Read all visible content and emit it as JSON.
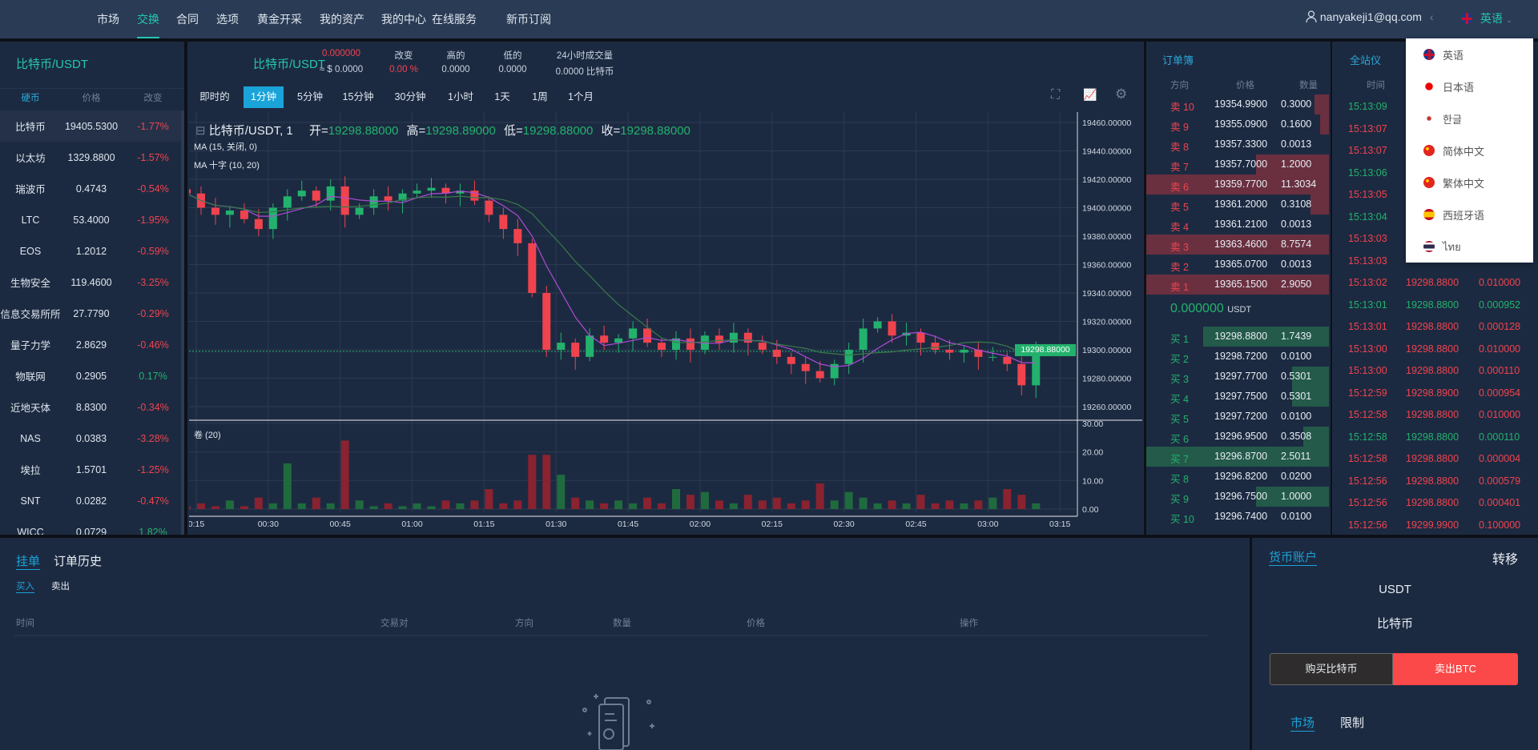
{
  "nav": {
    "items": [
      "市场",
      "交换",
      "合同",
      "选项",
      "黄金开采",
      "我的资产",
      "我的中心",
      "在线服务",
      "新币订阅"
    ],
    "active": 1,
    "user": "nanyakeji1@qq.com",
    "language": "英语"
  },
  "language_menu": [
    {
      "label": "英语",
      "flag": "uk"
    },
    {
      "label": "日本语",
      "flag": "jp"
    },
    {
      "label": "한글",
      "flag": "kr"
    },
    {
      "label": "简体中文",
      "flag": "cn"
    },
    {
      "label": "繁体中文",
      "flag": "cn"
    },
    {
      "label": "西班牙语",
      "flag": "es"
    },
    {
      "label": "ไทย",
      "flag": "th"
    }
  ],
  "market": {
    "title": "比特币/USDT",
    "headers": [
      "硬币",
      "价格",
      "改变"
    ],
    "rows": [
      [
        "比特币",
        "19405.5300",
        "-1.77%"
      ],
      [
        "以太坊",
        "1329.8800",
        "-1.57%"
      ],
      [
        "瑞波币",
        "0.4743",
        "-0.54%"
      ],
      [
        "LTC",
        "53.4000",
        "-1.95%"
      ],
      [
        "EOS",
        "1.2012",
        "-0.59%"
      ],
      [
        "生物安全",
        "119.4600",
        "-3.25%"
      ],
      [
        "信息交易所所",
        "27.7790",
        "-0.29%"
      ],
      [
        "量子力学",
        "2.8629",
        "-0.46%"
      ],
      [
        "物联网",
        "0.2905",
        "0.17%"
      ],
      [
        "近地天体",
        "8.8300",
        "-0.34%"
      ],
      [
        "NAS",
        "0.0383",
        "-3.28%"
      ],
      [
        "埃拉",
        "1.5701",
        "-1.25%"
      ],
      [
        "SNT",
        "0.0282",
        "-0.47%"
      ],
      [
        "WICC",
        "0.0729",
        "1.82%"
      ]
    ]
  },
  "ticker": {
    "pair": "比特币/USDT",
    "price": "0.000000",
    "usd": "≈ $ 0.0000",
    "change_label": "改变",
    "change": "0.00 %",
    "high_label": "高的",
    "high": "0.0000",
    "low_label": "低的",
    "low": "0.0000",
    "vol_label": "24小时成交量",
    "vol": "0.0000 比特币"
  },
  "timeframes": [
    "即时的",
    "1分钟",
    "5分钟",
    "15分钟",
    "30分钟",
    "1小时",
    "1天",
    "1周",
    "1个月"
  ],
  "active_timeframe": 1,
  "chart_legend": {
    "symbol": "比特币/USDT, 1",
    "open_label": "开=",
    "open": "19298.88000",
    "high_label": "高=",
    "high": "19298.89000",
    "low_label": "低=",
    "low": "19298.88000",
    "close_label": "收=",
    "close": "19298.88000",
    "ma1": "MA (15, 关闭, 0)",
    "ma2": "MA 十字 (10, 20)",
    "volume": "卷 (20)",
    "last_price": "19298.88000"
  },
  "chart_data": {
    "type": "candlestick",
    "interval_minutes": 3,
    "start": "00:13",
    "price_ticks": [
      "19460.00000",
      "19440.00000",
      "19420.00000",
      "19400.00000",
      "19380.00000",
      "19360.00000",
      "19340.00000",
      "19320.00000",
      "19300.00000",
      "19280.00000",
      "19260.00000"
    ],
    "volume_ticks": [
      "30.00",
      "20.00",
      "10.00",
      "0.00"
    ],
    "time_ticks": [
      "0:15",
      "00:30",
      "00:45",
      "01:00",
      "01:15",
      "01:30",
      "01:45",
      "02:00",
      "02:15",
      "02:30",
      "02:45",
      "03:00",
      "03:15"
    ],
    "closes": [
      19410,
      19400,
      19395,
      19398,
      19392,
      19385,
      19400,
      19408,
      19412,
      19405,
      19415,
      19395,
      19400,
      19408,
      19405,
      19410,
      19412,
      19414,
      19410,
      19412,
      19405,
      19395,
      19385,
      19375,
      19340,
      19300,
      19305,
      19295,
      19310,
      19305,
      19308,
      19315,
      19305,
      19300,
      19308,
      19300,
      19310,
      19305,
      19312,
      19305,
      19300,
      19295,
      19290,
      19285,
      19280,
      19290,
      19300,
      19315,
      19320,
      19310,
      19312,
      19305,
      19300,
      19298,
      19300,
      19295,
      19295,
      19290,
      19275,
      19298.88
    ],
    "volumes": [
      1,
      2,
      1,
      3,
      1,
      4,
      2,
      16,
      2,
      4,
      2,
      24,
      3,
      1,
      2,
      1,
      2,
      1,
      3,
      2,
      3,
      7,
      2,
      3,
      19,
      19,
      12,
      4,
      3,
      2,
      3,
      2,
      4,
      2,
      7,
      5,
      6,
      3,
      2,
      5,
      3,
      4,
      2,
      3,
      9,
      3,
      6,
      4,
      2,
      3,
      2,
      5,
      2,
      3,
      2,
      3,
      4,
      7,
      5,
      2
    ]
  },
  "orderbook": {
    "title": "订单簿",
    "headers": [
      "方向",
      "价格",
      "数量"
    ],
    "asks": [
      [
        "卖 10",
        "19354.9900",
        "0.3000",
        0.08
      ],
      [
        "卖 9",
        "19355.0900",
        "0.1600",
        0.05
      ],
      [
        "卖 8",
        "19357.3300",
        "0.0013",
        0
      ],
      [
        "卖 7",
        "19357.7000",
        "1.2000",
        0.4
      ],
      [
        "卖 6",
        "19359.7700",
        "11.3034",
        1
      ],
      [
        "卖 5",
        "19361.2000",
        "0.3108",
        0.1
      ],
      [
        "卖 4",
        "19361.2100",
        "0.0013",
        0
      ],
      [
        "卖 3",
        "19363.4600",
        "8.7574",
        1
      ],
      [
        "卖 2",
        "19365.0700",
        "0.0013",
        0
      ],
      [
        "卖 1",
        "19365.1500",
        "2.9050",
        1
      ]
    ],
    "mid": "0.000000",
    "mid_unit": "USDT",
    "bids": [
      [
        "买 1",
        "19298.8800",
        "1.7439",
        0.69
      ],
      [
        "买 2",
        "19298.7200",
        "0.0100",
        0
      ],
      [
        "买 3",
        "19297.7700",
        "0.5301",
        0.2
      ],
      [
        "买 4",
        "19297.7500",
        "0.5301",
        0.2
      ],
      [
        "买 5",
        "19297.7200",
        "0.0100",
        0
      ],
      [
        "买 6",
        "19296.9500",
        "0.3508",
        0.14
      ],
      [
        "买 7",
        "19296.8700",
        "2.5011",
        1
      ],
      [
        "买 8",
        "19296.8200",
        "0.0200",
        0
      ],
      [
        "买 9",
        "19296.7500",
        "1.0000",
        0.4
      ],
      [
        "买 10",
        "19296.7400",
        "0.0100",
        0
      ]
    ]
  },
  "trades": {
    "title": "全站仪",
    "header_time": "时间",
    "rows": [
      [
        "15:13:09",
        "",
        "",
        "buy"
      ],
      [
        "15:13:07",
        "",
        "",
        "sell"
      ],
      [
        "15:13:07",
        "",
        "",
        "sell"
      ],
      [
        "15:13:06",
        "",
        "",
        "buy"
      ],
      [
        "15:13:05",
        "",
        "",
        "sell"
      ],
      [
        "15:13:04",
        "",
        "",
        "buy"
      ],
      [
        "15:13:03",
        "",
        "",
        "sell"
      ],
      [
        "15:13:03",
        "",
        "",
        "sell"
      ],
      [
        "15:13:02",
        "19298.8800",
        "0.010000",
        "sell"
      ],
      [
        "15:13:01",
        "19298.8800",
        "0.000952",
        "buy"
      ],
      [
        "15:13:01",
        "19298.8800",
        "0.000128",
        "sell"
      ],
      [
        "15:13:00",
        "19298.8800",
        "0.010000",
        "sell"
      ],
      [
        "15:13:00",
        "19298.8800",
        "0.000110",
        "sell"
      ],
      [
        "15:12:59",
        "19298.8900",
        "0.000954",
        "sell"
      ],
      [
        "15:12:58",
        "19298.8800",
        "0.010000",
        "sell"
      ],
      [
        "15:12:58",
        "19298.8800",
        "0.000110",
        "buy"
      ],
      [
        "15:12:58",
        "19298.8800",
        "0.000004",
        "sell"
      ],
      [
        "15:12:56",
        "19298.8800",
        "0.000579",
        "sell"
      ],
      [
        "15:12:56",
        "19298.8800",
        "0.000401",
        "sell"
      ],
      [
        "15:12:56",
        "19299.9900",
        "0.100000",
        "sell"
      ]
    ]
  },
  "orders": {
    "tabs": [
      "挂单",
      "订单历史"
    ],
    "subtabs": [
      "买入",
      "卖出"
    ],
    "columns": [
      "时间",
      "交易对",
      "方向",
      "数量",
      "价格",
      "操作"
    ]
  },
  "account": {
    "title": "货币账户",
    "transfer": "转移",
    "asset1": "USDT",
    "asset2": "比特币",
    "buy": "购买比特币",
    "sell": "卖出BTC",
    "modes": [
      "市场",
      "限制"
    ]
  },
  "colors": {
    "up": "#23b26d",
    "down": "#f0434e",
    "accent": "#1aa3d9",
    "header": "#2a3b55",
    "panel": "#1c2a41"
  }
}
